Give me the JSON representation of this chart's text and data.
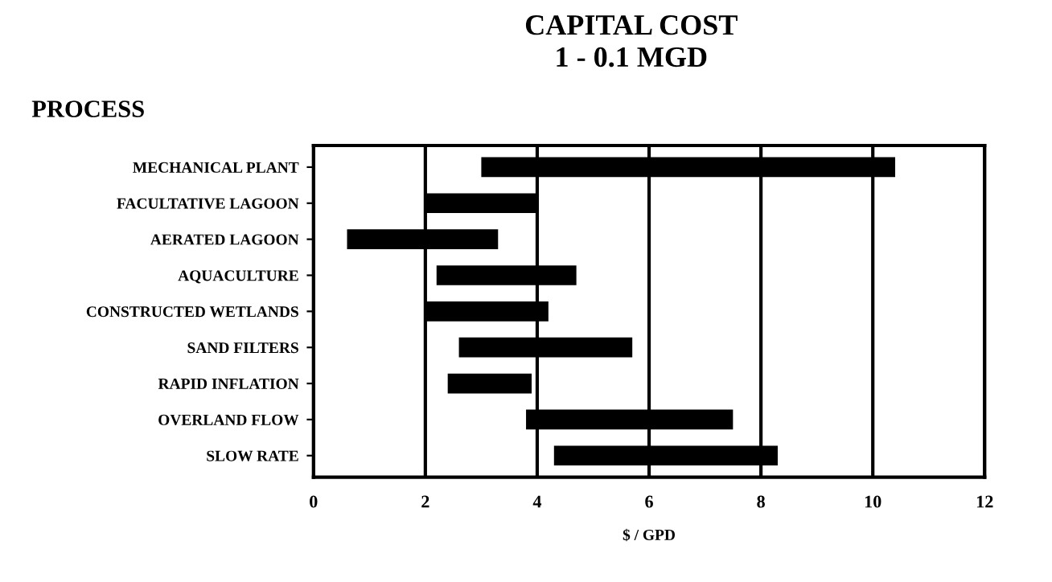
{
  "chart_data": {
    "type": "bar",
    "orientation": "horizontal",
    "title": "CAPITAL COST",
    "subtitle": "1 - 0.1 MGD",
    "ylabel": "PROCESS",
    "xlabel": "$ / GPD",
    "categories": [
      "MECHANICAL PLANT",
      "FACULTATIVE LAGOON",
      "AERATED LAGOON",
      "AQUACULTURE",
      "CONSTRUCTED WETLANDS",
      "SAND FILTERS",
      "RAPID INFLATION",
      "OVERLAND FLOW",
      "SLOW RATE"
    ],
    "base": [
      3.0,
      2.0,
      0.6,
      2.2,
      2.0,
      2.6,
      2.4,
      3.8,
      4.3
    ],
    "values": [
      7.4,
      2.0,
      2.7,
      2.5,
      2.2,
      3.1,
      1.5,
      3.7,
      4.0
    ],
    "color": "#000000",
    "xlim": [
      0,
      12
    ],
    "xticks": [
      0,
      2,
      4,
      6,
      8,
      10,
      12
    ],
    "grid": "x"
  }
}
